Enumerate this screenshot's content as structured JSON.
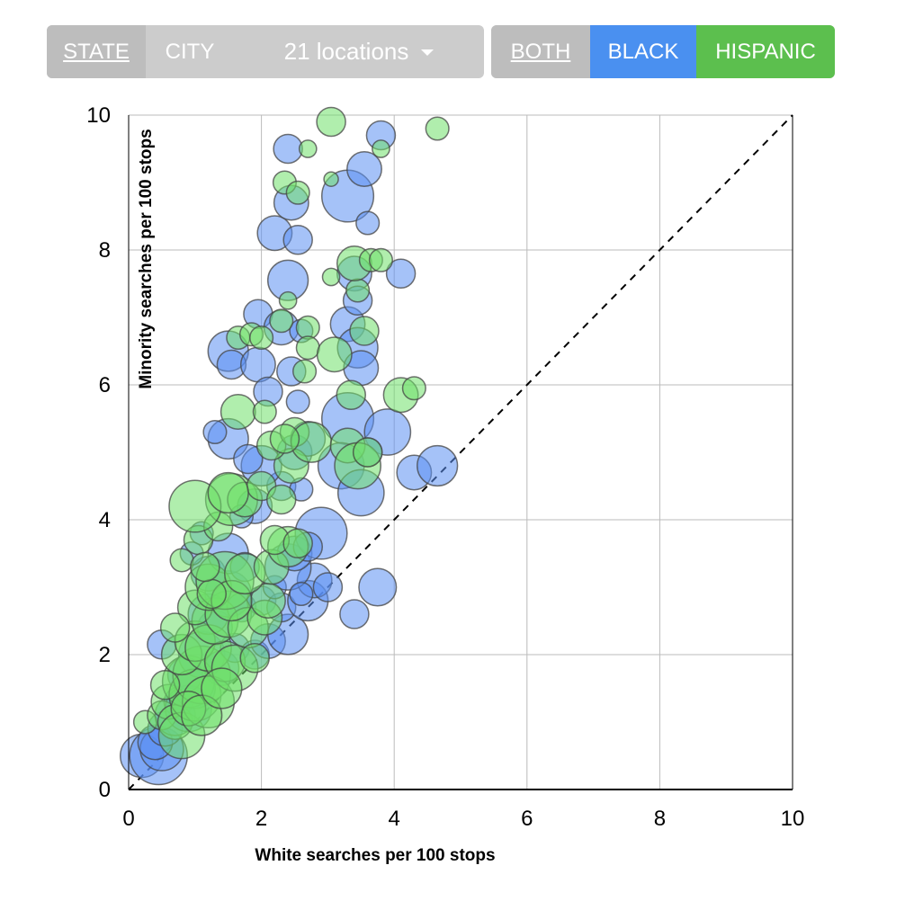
{
  "controls": {
    "level_buttons": [
      {
        "label": "STATE",
        "active": true
      },
      {
        "label": "CITY",
        "active": false
      }
    ],
    "location_dropdown": "21 locations",
    "race_buttons": [
      {
        "label": "BOTH",
        "active": true,
        "color": "#cccccc"
      },
      {
        "label": "BLACK",
        "active": false,
        "color": "#4a90f0"
      },
      {
        "label": "HISPANIC",
        "active": false,
        "color": "#5cbf4e"
      }
    ]
  },
  "chart_data": {
    "type": "scatter",
    "xlabel": "White searches per 100 stops",
    "ylabel": "Minority searches per 100 stops",
    "xlim": [
      0,
      10
    ],
    "ylim": [
      0,
      10
    ],
    "xticks": [
      "0",
      "2",
      "4",
      "6",
      "8",
      "10"
    ],
    "yticks": [
      "0",
      "2",
      "4",
      "6",
      "8",
      "10"
    ],
    "grid": true,
    "reference_line": "y = x (dashed)",
    "series": [
      {
        "name": "Black",
        "color": "#5b8ff2",
        "points": [
          [
            0.2,
            0.5,
            1.5
          ],
          [
            0.45,
            0.5,
            2.0
          ],
          [
            0.5,
            0.6,
            1.5
          ],
          [
            0.4,
            0.7,
            1.2
          ],
          [
            0.55,
            0.9,
            1.2
          ],
          [
            0.7,
            1.1,
            1.4
          ],
          [
            0.75,
            1.3,
            1.0
          ],
          [
            0.9,
            1.2,
            1.6
          ],
          [
            1.0,
            1.5,
            1.4
          ],
          [
            0.85,
            1.7,
            1.2
          ],
          [
            0.5,
            2.15,
            1.0
          ],
          [
            1.1,
            2.0,
            1.6
          ],
          [
            1.4,
            1.8,
            1.2
          ],
          [
            1.3,
            2.4,
            1.2
          ],
          [
            1.6,
            2.1,
            1.0
          ],
          [
            1.9,
            2.0,
            1.0
          ],
          [
            2.1,
            2.2,
            1.2
          ],
          [
            2.4,
            2.3,
            1.4
          ],
          [
            1.2,
            2.6,
            1.4
          ],
          [
            1.5,
            2.9,
            1.6
          ],
          [
            1.7,
            2.7,
            1.0
          ],
          [
            2.0,
            2.8,
            1.0
          ],
          [
            2.3,
            2.7,
            1.0
          ],
          [
            2.7,
            2.8,
            1.4
          ],
          [
            2.8,
            3.1,
            1.2
          ],
          [
            3.0,
            3.0,
            1.0
          ],
          [
            3.4,
            2.6,
            1.0
          ],
          [
            3.75,
            3.0,
            1.3
          ],
          [
            2.2,
            3.0,
            0.8
          ],
          [
            1.2,
            3.2,
            1.2
          ],
          [
            1.5,
            3.5,
            1.4
          ],
          [
            1.75,
            3.3,
            1.0
          ],
          [
            2.4,
            3.3,
            1.6
          ],
          [
            2.5,
            3.5,
            1.2
          ],
          [
            2.9,
            3.8,
            1.8
          ],
          [
            2.7,
            3.6,
            1.0
          ],
          [
            1.9,
            4.2,
            1.2
          ],
          [
            2.3,
            4.5,
            1.0
          ],
          [
            2.0,
            4.8,
            1.4
          ],
          [
            2.5,
            5.0,
            1.2
          ],
          [
            1.5,
            5.2,
            1.4
          ],
          [
            1.8,
            4.9,
            1.0
          ],
          [
            2.7,
            5.2,
            1.2
          ],
          [
            3.3,
            5.5,
            1.8
          ],
          [
            3.2,
            4.8,
            1.6
          ],
          [
            3.5,
            4.4,
            1.6
          ],
          [
            3.9,
            5.3,
            1.6
          ],
          [
            4.3,
            4.7,
            1.2
          ],
          [
            4.65,
            4.8,
            1.4
          ],
          [
            1.3,
            5.3,
            0.8
          ],
          [
            1.5,
            6.5,
            1.4
          ],
          [
            1.55,
            6.3,
            1.0
          ],
          [
            1.95,
            6.3,
            1.2
          ],
          [
            1.95,
            7.05,
            1.0
          ],
          [
            2.4,
            7.55,
            1.4
          ],
          [
            2.3,
            6.85,
            1.2
          ],
          [
            2.45,
            6.2,
            1.0
          ],
          [
            2.6,
            6.8,
            0.8
          ],
          [
            3.3,
            6.9,
            1.2
          ],
          [
            3.45,
            6.55,
            1.4
          ],
          [
            3.5,
            6.25,
            1.2
          ],
          [
            3.4,
            7.65,
            1.2
          ],
          [
            3.45,
            7.25,
            1.0
          ],
          [
            4.1,
            7.65,
            1.0
          ],
          [
            2.2,
            8.25,
            1.2
          ],
          [
            2.45,
            8.7,
            1.2
          ],
          [
            2.55,
            8.15,
            1.0
          ],
          [
            3.3,
            8.8,
            1.8
          ],
          [
            3.6,
            8.4,
            0.8
          ],
          [
            3.55,
            9.2,
            1.2
          ],
          [
            3.8,
            9.7,
            1.0
          ],
          [
            2.4,
            9.5,
            1.0
          ],
          [
            2.1,
            5.9,
            1.0
          ],
          [
            2.55,
            5.75,
            0.8
          ],
          [
            1.7,
            4.05,
            0.8
          ],
          [
            1.1,
            3.8,
            0.8
          ],
          [
            0.95,
            3.5,
            0.8
          ],
          [
            2.6,
            4.45,
            0.8
          ],
          [
            3.6,
            5.0,
            1.0
          ],
          [
            2.6,
            2.9,
            0.8
          ]
        ]
      },
      {
        "name": "Hispanic",
        "color": "#6fe06a",
        "points": [
          [
            0.25,
            1.0,
            0.8
          ],
          [
            0.5,
            1.1,
            1.0
          ],
          [
            0.6,
            1.3,
            1.2
          ],
          [
            0.7,
            1.0,
            1.2
          ],
          [
            0.8,
            0.8,
            1.6
          ],
          [
            0.9,
            1.6,
            1.8
          ],
          [
            1.0,
            1.4,
            1.8
          ],
          [
            1.1,
            1.7,
            2.0
          ],
          [
            1.2,
            1.3,
            1.8
          ],
          [
            0.8,
            2.0,
            1.4
          ],
          [
            1.0,
            2.2,
            1.4
          ],
          [
            1.2,
            2.1,
            1.6
          ],
          [
            1.45,
            1.9,
            1.4
          ],
          [
            1.6,
            1.8,
            1.6
          ],
          [
            1.3,
            2.5,
            1.6
          ],
          [
            1.0,
            2.7,
            1.2
          ],
          [
            1.5,
            2.6,
            1.6
          ],
          [
            1.8,
            2.4,
            1.4
          ],
          [
            2.05,
            2.55,
            1.2
          ],
          [
            2.1,
            2.8,
            1.2
          ],
          [
            1.2,
            3.0,
            1.6
          ],
          [
            1.45,
            3.1,
            2.0
          ],
          [
            1.55,
            2.8,
            1.4
          ],
          [
            1.75,
            3.2,
            1.4
          ],
          [
            2.15,
            3.3,
            1.2
          ],
          [
            2.4,
            3.6,
            1.4
          ],
          [
            1.05,
            3.7,
            1.0
          ],
          [
            1.35,
            3.9,
            1.0
          ],
          [
            1.55,
            4.3,
            1.8
          ],
          [
            1.0,
            4.2,
            1.8
          ],
          [
            1.75,
            4.3,
            1.2
          ],
          [
            2.0,
            4.5,
            1.0
          ],
          [
            2.3,
            4.3,
            1.0
          ],
          [
            2.45,
            4.8,
            1.2
          ],
          [
            2.15,
            5.1,
            1.0
          ],
          [
            1.65,
            5.6,
            1.2
          ],
          [
            2.05,
            5.6,
            0.8
          ],
          [
            2.5,
            5.3,
            1.0
          ],
          [
            2.75,
            5.15,
            1.4
          ],
          [
            3.3,
            5.1,
            1.2
          ],
          [
            3.45,
            4.8,
            1.6
          ],
          [
            3.6,
            5.0,
            1.0
          ],
          [
            3.35,
            5.85,
            1.0
          ],
          [
            4.1,
            5.85,
            1.2
          ],
          [
            4.3,
            5.95,
            0.8
          ],
          [
            1.65,
            6.7,
            0.8
          ],
          [
            1.85,
            6.75,
            0.8
          ],
          [
            2.0,
            6.7,
            0.8
          ],
          [
            2.3,
            6.95,
            0.8
          ],
          [
            2.7,
            6.85,
            0.8
          ],
          [
            2.7,
            6.55,
            0.8
          ],
          [
            3.1,
            6.45,
            1.2
          ],
          [
            2.65,
            6.2,
            0.8
          ],
          [
            3.45,
            7.4,
            0.8
          ],
          [
            3.55,
            6.8,
            1.0
          ],
          [
            3.4,
            7.8,
            1.2
          ],
          [
            3.65,
            7.85,
            0.8
          ],
          [
            3.8,
            7.85,
            0.8
          ],
          [
            3.05,
            7.6,
            0.6
          ],
          [
            2.4,
            7.25,
            0.6
          ],
          [
            2.35,
            9.0,
            0.8
          ],
          [
            2.55,
            8.85,
            0.8
          ],
          [
            2.7,
            9.5,
            0.6
          ],
          [
            3.05,
            9.9,
            1.0
          ],
          [
            3.05,
            9.05,
            0.5
          ],
          [
            4.65,
            9.8,
            0.8
          ],
          [
            3.8,
            9.5,
            0.6
          ],
          [
            0.8,
            3.4,
            0.8
          ],
          [
            0.7,
            2.4,
            1.0
          ],
          [
            0.9,
            1.2,
            1.2
          ],
          [
            1.1,
            1.1,
            1.4
          ],
          [
            1.4,
            1.5,
            1.4
          ],
          [
            1.25,
            2.9,
            1.0
          ],
          [
            2.2,
            3.7,
            1.0
          ],
          [
            2.55,
            3.65,
            1.0
          ],
          [
            1.5,
            4.4,
            1.4
          ],
          [
            1.15,
            3.3,
            1.0
          ],
          [
            0.55,
            1.55,
            1.0
          ],
          [
            1.9,
            1.95,
            1.0
          ],
          [
            2.35,
            5.2,
            1.0
          ]
        ]
      }
    ]
  }
}
